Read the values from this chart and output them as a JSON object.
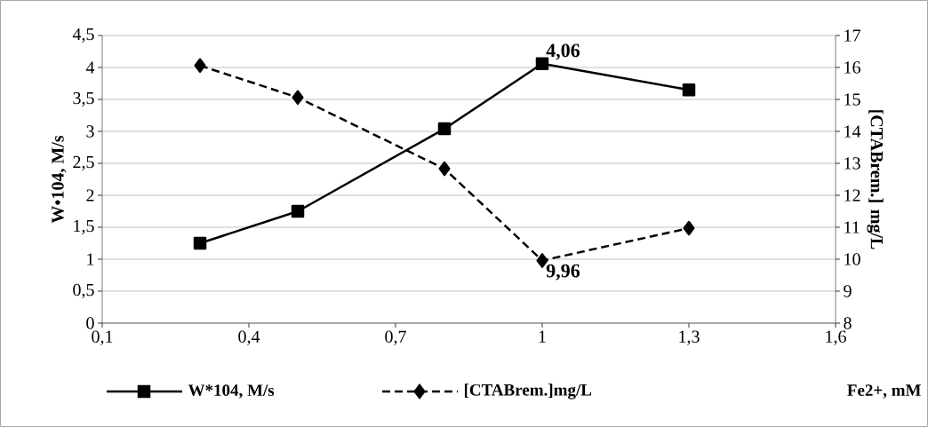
{
  "chart_data": {
    "type": "line",
    "xlabel": "Fe2+, mM",
    "ylabel": "W•104, M/s",
    "y2label": "[CTABrem.] mg/L",
    "x": [
      0.3,
      0.5,
      0.8,
      1.0,
      1.3
    ],
    "series": [
      {
        "name": "W*104, M/s",
        "color": "#000000",
        "values": [
          1.25,
          1.75,
          3.04,
          4.06,
          3.65
        ],
        "marker": "square",
        "line_style": "solid",
        "value_labels": [
          null,
          null,
          null,
          "4,06",
          null
        ]
      },
      {
        "name": "[CTABrem.]mg/L",
        "color": "#000000",
        "values": [
          16.06,
          15.06,
          12.83,
          9.96,
          10.97
        ],
        "marker": "diamond",
        "line_style": "dashed",
        "axis": "y2",
        "value_labels": [
          null,
          null,
          null,
          "9,96",
          null
        ]
      }
    ],
    "xlim": [
      0.1,
      1.6
    ],
    "xticks": [
      {
        "value": 0.1,
        "label": "0,1"
      },
      {
        "value": 0.4,
        "label": "0,4"
      },
      {
        "value": 0.7,
        "label": "0,7"
      },
      {
        "value": 1.0,
        "label": "1"
      },
      {
        "value": 1.3,
        "label": "1,3"
      },
      {
        "value": 1.6,
        "label": "1,6"
      }
    ],
    "ylim": [
      0,
      4.5
    ],
    "yticks": [
      0,
      {
        "value": 0.5,
        "label": "0,5"
      },
      1,
      {
        "value": 1.5,
        "label": "1,5"
      },
      2,
      {
        "value": 2.5,
        "label": "2,5"
      },
      3,
      {
        "value": 3.5,
        "label": "3,5"
      },
      4,
      {
        "value": 4.5,
        "label": "4,5"
      }
    ],
    "y2lim": [
      8,
      17
    ],
    "y2ticks": [
      8,
      9,
      10,
      11,
      12,
      13,
      14,
      15,
      16,
      17
    ],
    "grid": "y",
    "legend": "bottom"
  }
}
